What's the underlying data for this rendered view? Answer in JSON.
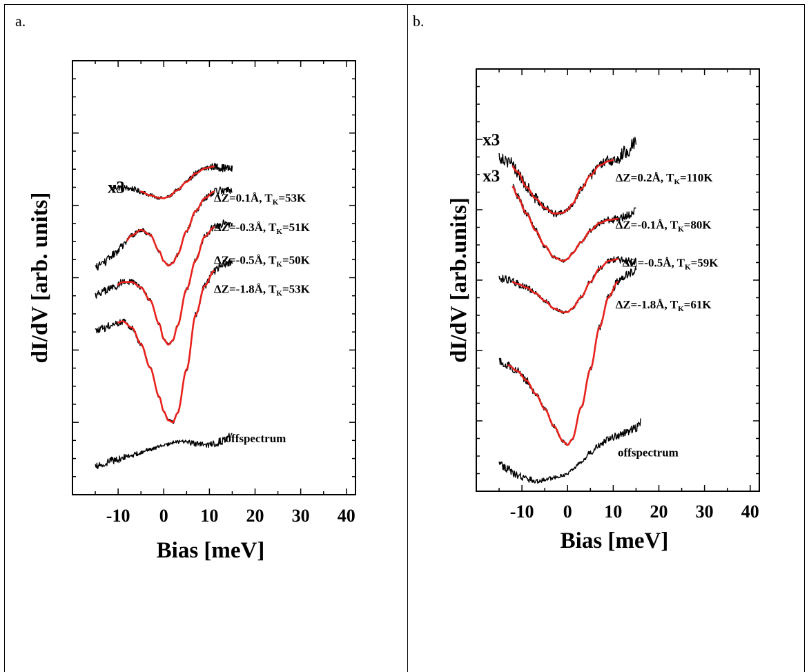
{
  "panels": [
    {
      "label": "a."
    },
    {
      "label": "b."
    }
  ],
  "colors": {
    "data": "#000000",
    "fit": "#e8211c",
    "axis": "#000000"
  },
  "chart_data": [
    {
      "type": "line",
      "xlabel": "Bias [meV]",
      "ylabel": "dI/dV [arb. units]",
      "xlim": [
        -20,
        42
      ],
      "ylim": [
        0,
        100
      ],
      "y_tick_labels": false,
      "x_ticks": [
        -10,
        0,
        10,
        20,
        30,
        40
      ],
      "x_tick_labels": [
        "-10",
        "0",
        "10",
        "20",
        "30",
        "40"
      ],
      "scale_labels": [
        {
          "text": "x3",
          "x": -12.3,
          "y": 75.5
        }
      ],
      "series": [
        {
          "annotation": {
            "text": "ΔZ=0.1Å, T",
            "sub": "K",
            "tail": "=53K",
            "x": 11,
            "y": 73
          },
          "fit_range": [
            -5,
            11
          ],
          "x": [
            -11,
            -9,
            -7,
            -5,
            -3,
            -1,
            0,
            1,
            3,
            5,
            7,
            9,
            11,
            13,
            15
          ],
          "y": [
            77,
            76.9,
            76.6,
            75.8,
            74.8,
            74.1,
            74,
            74.4,
            76.2,
            78.5,
            80.8,
            82.2,
            82.7,
            82.3,
            82
          ]
        },
        {
          "annotation": {
            "text": "ΔZ=-0.3Å, T",
            "sub": "K",
            "tail": "=51K",
            "x": 11,
            "y": 65
          },
          "fit_range": [
            -8,
            11
          ],
          "x": [
            -15,
            -13,
            -11,
            -9,
            -7,
            -5,
            -3,
            -1,
            0,
            1,
            2,
            3,
            5,
            7,
            9,
            11,
            13,
            15
          ],
          "y": [
            55,
            56.5,
            58.5,
            61,
            63.8,
            65.3,
            64,
            59.5,
            56.7,
            55.5,
            56.2,
            58.5,
            65,
            70.5,
            74,
            75.8,
            76.3,
            76
          ]
        },
        {
          "annotation": {
            "text": "ΔZ=-0.5Å, T",
            "sub": "K",
            "tail": "=50K",
            "x": 11,
            "y": 56
          },
          "fit_range": [
            -10,
            11
          ],
          "x": [
            -15,
            -13,
            -11,
            -9,
            -7,
            -5,
            -3,
            -1,
            0,
            1,
            2,
            3,
            5,
            7,
            9,
            11,
            13,
            15
          ],
          "y": [
            47.5,
            48.5,
            49.5,
            51,
            51,
            49.5,
            46,
            39.5,
            35.3,
            33.8,
            35,
            39,
            49,
            57,
            63.5,
            66,
            67,
            66.5
          ]
        },
        {
          "annotation": {
            "text": "ΔZ=-1.8Å, T",
            "sub": "K",
            "tail": "=53K",
            "x": 11,
            "y": 48
          },
          "fit_range": [
            -10,
            11
          ],
          "x": [
            -15,
            -13,
            -11,
            -9,
            -7,
            -5,
            -3,
            -1,
            0,
            1,
            2,
            3,
            5,
            7,
            9,
            11,
            13,
            15
          ],
          "y": [
            37.5,
            38.3,
            39.5,
            40.2,
            38.5,
            34,
            27.5,
            19.5,
            15.5,
            13,
            12.5,
            15,
            27,
            42,
            50,
            54,
            56,
            56.5
          ]
        },
        {
          "annotation": {
            "text": "offspectrum",
            "x": 13.5,
            "y": 7
          },
          "x": [
            -15,
            -11,
            -7,
            -3,
            0,
            3,
            5,
            7,
            9,
            11,
            13,
            15
          ],
          "y": [
            0.5,
            2,
            3.5,
            5,
            6.2,
            7.2,
            7,
            6.6,
            6.4,
            6.6,
            7.4,
            9
          ]
        }
      ]
    },
    {
      "type": "line",
      "xlabel": "Bias [meV]",
      "ylabel": "dI/dV [arb.units]",
      "xlim": [
        -20,
        42
      ],
      "ylim": [
        0,
        100
      ],
      "y_tick_labels": false,
      "x_ticks": [
        -10,
        0,
        10,
        20,
        30,
        40
      ],
      "x_tick_labels": [
        "-10",
        "0",
        "10",
        "20",
        "30",
        "40"
      ],
      "scale_labels": [
        {
          "text": "x3",
          "x": -18.6,
          "y": 89
        },
        {
          "text": "x3",
          "x": -18.6,
          "y": 79.5
        }
      ],
      "series": [
        {
          "annotation": {
            "text": "ΔZ=0.2Å, T",
            "sub": "K",
            "tail": "=110K",
            "x": 10.5,
            "y": 79.5
          },
          "fit_range": [
            -12,
            10
          ],
          "x": [
            -15,
            -13,
            -11,
            -9,
            -7,
            -5,
            -3,
            -1,
            0,
            1,
            3,
            5,
            7,
            9,
            11,
            13,
            15
          ],
          "y": [
            86,
            85,
            82,
            78,
            75,
            72.5,
            71,
            71.2,
            72,
            73.5,
            77.5,
            81,
            83.7,
            84.8,
            85.5,
            87.5,
            90
          ]
        },
        {
          "annotation": {
            "text": "ΔZ=-0.1Å, T",
            "sub": "K",
            "tail": "=80K",
            "x": 10.5,
            "y": 67
          },
          "fit_range": [
            -12,
            11
          ],
          "x": [
            -12,
            -11,
            -9,
            -7,
            -5,
            -3,
            -1,
            0,
            1,
            3,
            5,
            7,
            9,
            11,
            13,
            15
          ],
          "y": [
            78,
            75.5,
            71,
            66.5,
            62.5,
            59.5,
            58.5,
            59,
            60.5,
            63.5,
            66.5,
            68.5,
            69.3,
            69.6,
            70.5,
            72
          ]
        },
        {
          "annotation": {
            "text": "ΔZ=-0.5Å, T",
            "sub": "K",
            "tail": "=59K",
            "x": 12,
            "y": 57
          },
          "fit_range": [
            -12,
            11
          ],
          "x": [
            -15,
            -13,
            -11,
            -9,
            -7,
            -5,
            -3,
            -1,
            0,
            1,
            3,
            5,
            7,
            9,
            11,
            13,
            15
          ],
          "y": [
            54,
            53.5,
            52.5,
            51.5,
            50,
            48,
            46,
            45,
            45,
            46,
            49,
            53,
            56.5,
            58.5,
            59,
            58.5,
            58.5
          ]
        },
        {
          "annotation": {
            "text": "ΔZ=-1.8Å, T",
            "sub": "K",
            "tail": "=61K",
            "x": 10.5,
            "y": 46
          },
          "fit_range": [
            -13,
            11
          ],
          "x": [
            -15,
            -13,
            -11,
            -9,
            -7,
            -5,
            -3,
            -1,
            0,
            1,
            3,
            5,
            7,
            9,
            11,
            13,
            15
          ],
          "y": [
            32,
            31,
            29.5,
            27,
            23.5,
            19.5,
            15,
            11,
            10,
            11.5,
            20,
            30,
            41,
            49,
            53,
            55,
            56
          ]
        },
        {
          "annotation": {
            "text": "offspectrum",
            "x": 11,
            "y": 7
          },
          "x": [
            -15,
            -13,
            -11,
            -9,
            -7,
            -5,
            -3,
            -1,
            0,
            1,
            3,
            5,
            7,
            9,
            11,
            13,
            15,
            16
          ],
          "y": [
            5,
            3.5,
            2,
            1,
            0.6,
            0.9,
            1.4,
            2,
            2.5,
            3.5,
            5.5,
            8,
            10,
            11.5,
            12.5,
            13.5,
            14.5,
            16
          ]
        }
      ]
    }
  ]
}
